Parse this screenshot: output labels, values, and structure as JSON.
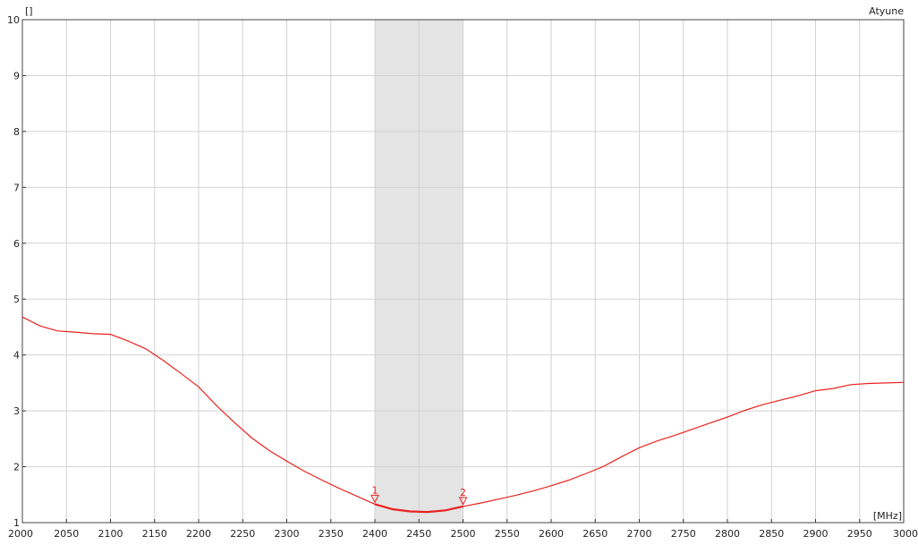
{
  "chart_data": {
    "type": "line",
    "title": "",
    "series_label": "Atyune",
    "y_unit_label": "[]",
    "x_unit_label": "[MHz]",
    "xlim": [
      2000,
      3000
    ],
    "ylim": [
      1,
      10
    ],
    "x_ticks": [
      2000,
      2050,
      2100,
      2150,
      2200,
      2250,
      2300,
      2350,
      2400,
      2450,
      2500,
      2550,
      2600,
      2650,
      2700,
      2750,
      2800,
      2850,
      2900,
      2950,
      3000
    ],
    "y_ticks": [
      1,
      2,
      3,
      4,
      5,
      6,
      7,
      8,
      9,
      10
    ],
    "grid": true,
    "highlight_band": {
      "from": 2400,
      "to": 2500,
      "color": "#e4e4e4"
    },
    "markers": [
      {
        "label": "1",
        "x": 2400,
        "y": 1.33
      },
      {
        "label": "2",
        "x": 2500,
        "y": 1.29
      }
    ],
    "series": [
      {
        "name": "Atyune",
        "color": "#e8231f",
        "x": [
          2000,
          2020,
          2040,
          2060,
          2080,
          2100,
          2120,
          2140,
          2160,
          2180,
          2200,
          2220,
          2240,
          2260,
          2280,
          2300,
          2320,
          2340,
          2360,
          2380,
          2400,
          2420,
          2440,
          2460,
          2480,
          2500,
          2520,
          2540,
          2560,
          2580,
          2600,
          2620,
          2640,
          2660,
          2680,
          2700,
          2720,
          2740,
          2760,
          2780,
          2800,
          2820,
          2840,
          2860,
          2880,
          2900,
          2920,
          2940,
          2960,
          2980,
          3000
        ],
        "y": [
          4.68,
          4.52,
          4.43,
          4.41,
          4.38,
          4.37,
          4.25,
          4.11,
          3.9,
          3.67,
          3.43,
          3.1,
          2.8,
          2.52,
          2.29,
          2.1,
          1.92,
          1.76,
          1.61,
          1.47,
          1.33,
          1.24,
          1.2,
          1.19,
          1.22,
          1.29,
          1.35,
          1.42,
          1.49,
          1.57,
          1.66,
          1.76,
          1.88,
          2.01,
          2.18,
          2.34,
          2.46,
          2.56,
          2.67,
          2.78,
          2.89,
          3.01,
          3.11,
          3.19,
          3.27,
          3.36,
          3.4,
          3.47,
          3.49,
          3.5,
          3.51
        ]
      }
    ]
  }
}
